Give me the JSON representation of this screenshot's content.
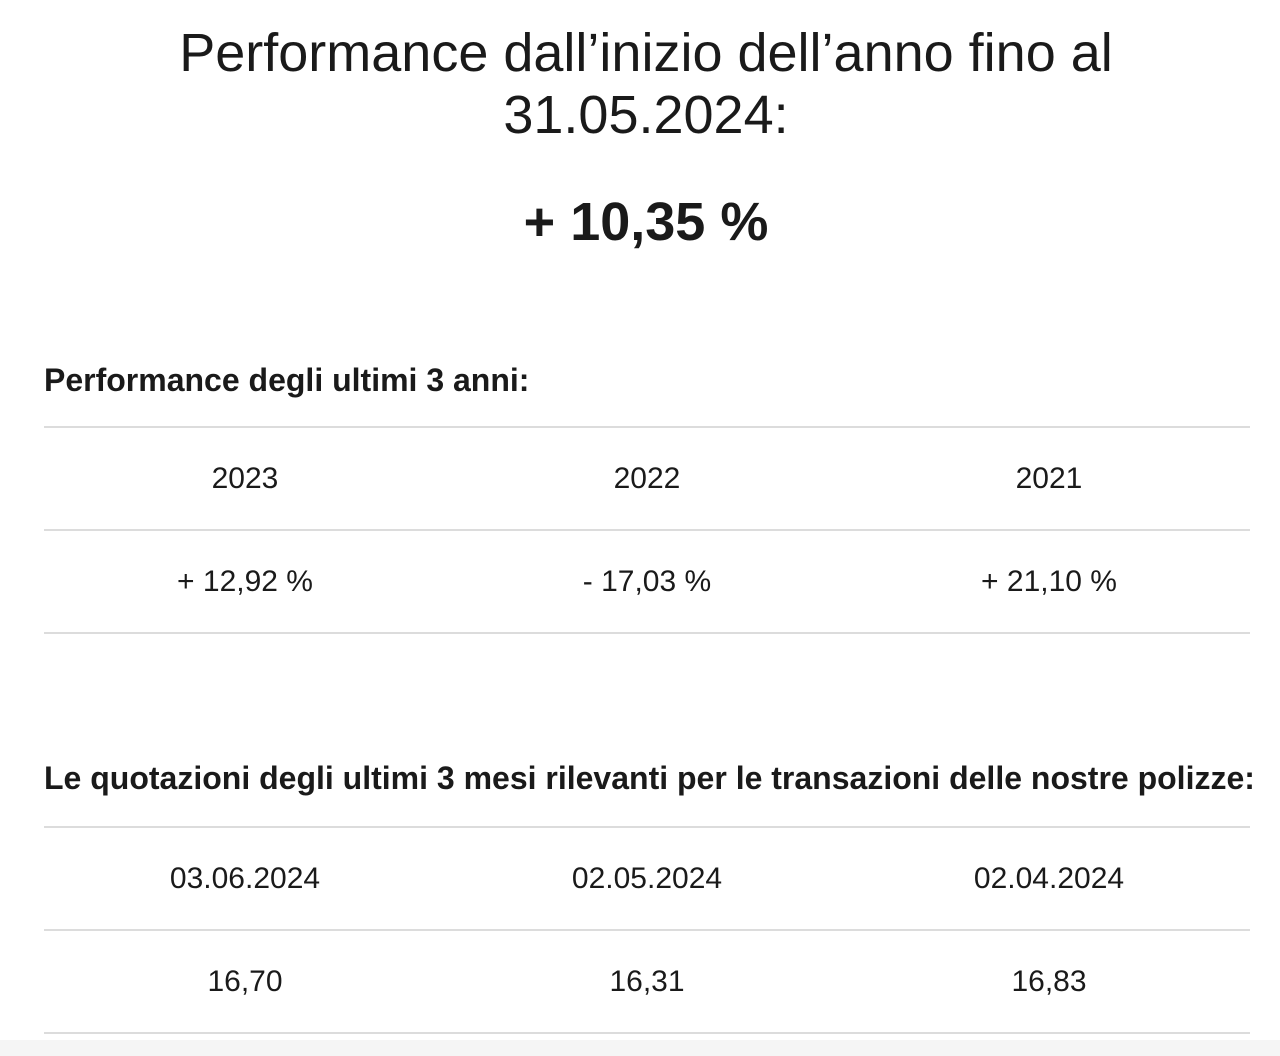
{
  "ytd": {
    "title_line1": "Performance dall’inizio dell’anno fino al",
    "title_line2": "31.05.2024:",
    "value": "+ 10,35 %"
  },
  "annual_performance": {
    "heading": "Performance degli ultimi 3 anni:",
    "headers": [
      "2023",
      "2022",
      "2021"
    ],
    "values": [
      "+ 12,92 %",
      "- 17,03 %",
      "+ 21,10 %"
    ]
  },
  "quotes": {
    "heading": "Le quotazioni degli ultimi 3 mesi rilevanti per le transazioni delle nostre polizze:",
    "dates": [
      "03.06.2024",
      "02.05.2024",
      "02.04.2024"
    ],
    "values": [
      "16,70",
      "16,31",
      "16,83"
    ]
  }
}
